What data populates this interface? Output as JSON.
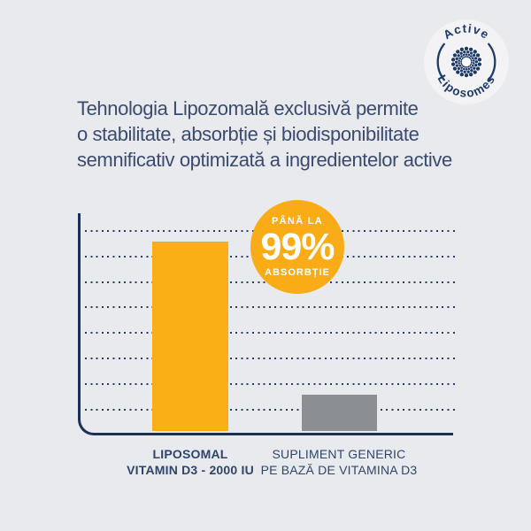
{
  "badge": {
    "top_text": "Active",
    "bottom_text": "Liposomes"
  },
  "heading": {
    "line1": "Tehnologia Lipozomală exclusivă permite",
    "line2": "o stabilitate, absorbție și biodisponibilitate",
    "line3": "semnificativ optimizată a ingredientelor active"
  },
  "highlight": {
    "prefix": "PÂNĂ LA",
    "value": "99%",
    "suffix": "ABSORBȚIE"
  },
  "chart_data": {
    "type": "bar",
    "categories": [
      "LIPOSOMAL VITAMIN D3 - 2000 IU",
      "SUPLIMENT GENERIC PE BAZĂ DE VITAMINA D3"
    ],
    "values": [
      99,
      19
    ],
    "unit": "%",
    "title": "",
    "xlabel": "",
    "ylabel": "",
    "ylim": [
      0,
      100
    ],
    "grid": "8 dotted horizontal gridlines, no tick labels",
    "legend": "none",
    "annotation": "PÂNĂ LA 99% ABSORBȚIE",
    "bar_colors": [
      "#FBAF16",
      "#8B8F93"
    ]
  },
  "bar_labels": {
    "bar1_line1": "LIPOSOMAL",
    "bar1_line2": "VITAMIN D3 - 2000 IU",
    "bar2_line1": "SUPLIMENT GENERIC",
    "bar2_line2": "PE BAZĂ DE VITAMINA D3"
  },
  "colors": {
    "background": "#E9EAEE",
    "navy_text": "#3B4B6E",
    "navy_axis": "#1C2F55",
    "accent_yellow": "#FBAF16",
    "bar_gray": "#8B8F93",
    "white": "#FFFFFF"
  }
}
